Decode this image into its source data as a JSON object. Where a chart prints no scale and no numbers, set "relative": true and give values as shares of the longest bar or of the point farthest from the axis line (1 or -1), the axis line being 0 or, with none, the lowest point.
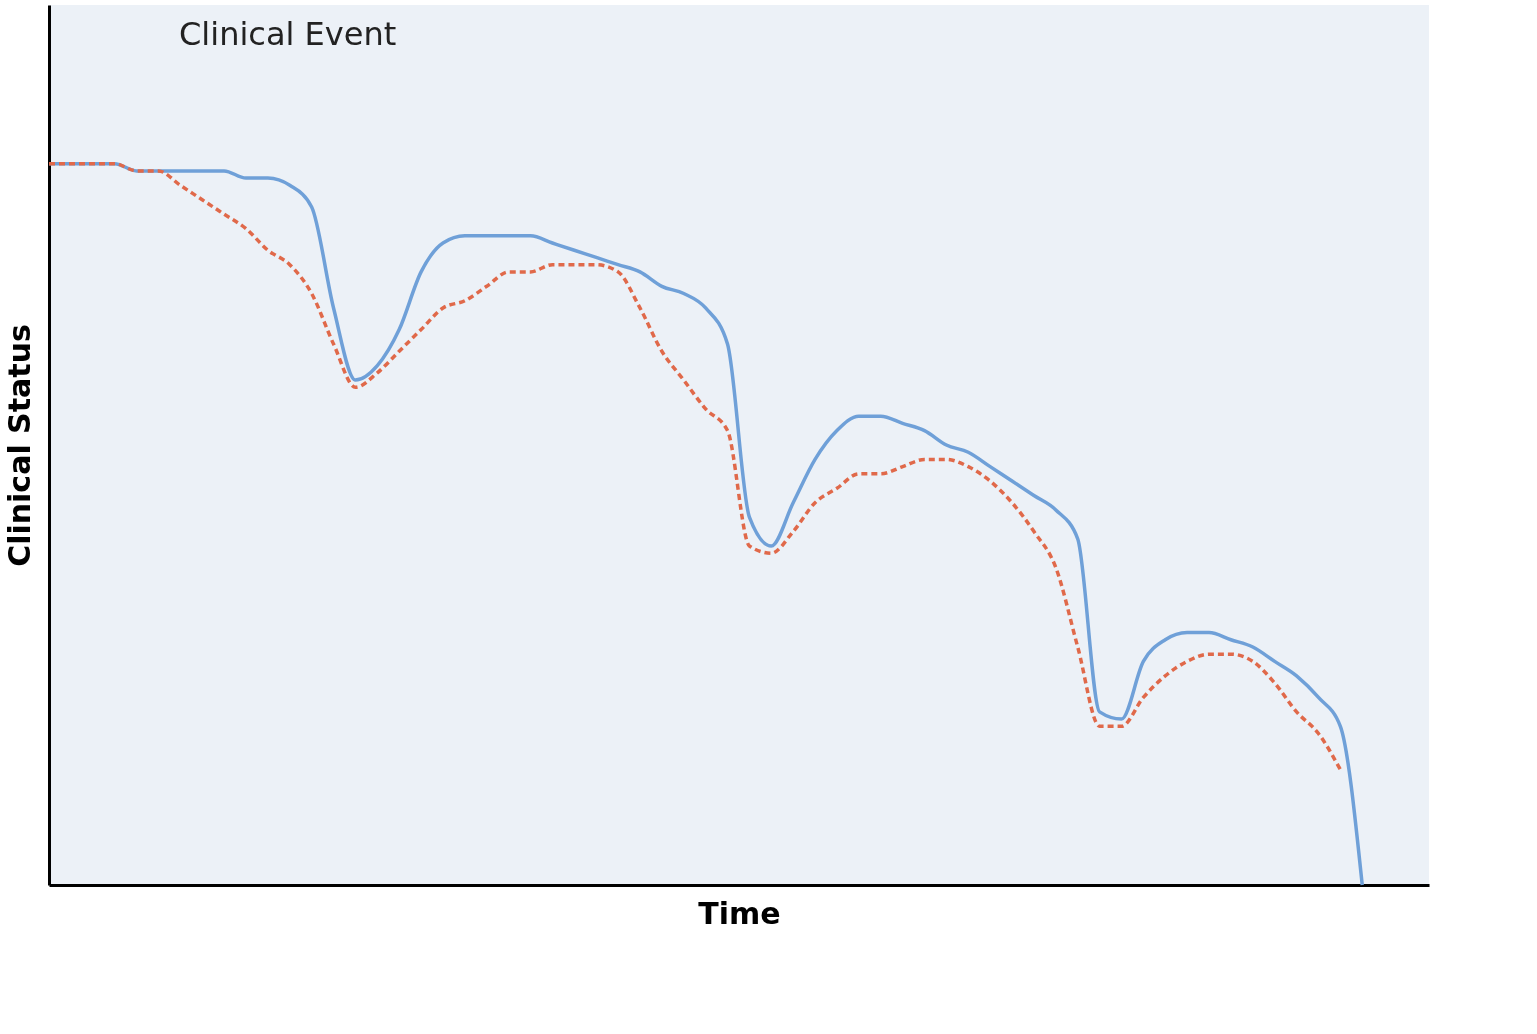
{
  "chart_data": {
    "type": "line",
    "relative": true,
    "xlabel": "Time",
    "ylabel": "Clinical Status",
    "categories": [
      null,
      null,
      null,
      null,
      null,
      null,
      null,
      null,
      null,
      null,
      null,
      null,
      null,
      null,
      null,
      null,
      null,
      null,
      null,
      null,
      null,
      null,
      null,
      null,
      null,
      null,
      null,
      null,
      null,
      null,
      null,
      null,
      null,
      null,
      null,
      null,
      null,
      null,
      null,
      null,
      null,
      null,
      null,
      null,
      null,
      null,
      null,
      null,
      null,
      null,
      null,
      null,
      null,
      null,
      null,
      null,
      null,
      null,
      null,
      null,
      null
    ],
    "series": [
      {
        "color": "#6fa0d8",
        "line_style": "solid",
        "values": [
          1.0,
          1.0,
          1.0,
          1.0,
          0.99,
          0.99,
          0.99,
          0.99,
          0.99,
          0.98,
          0.98,
          0.97,
          0.94,
          0.8,
          0.7,
          0.72,
          0.77,
          0.85,
          0.89,
          0.9,
          0.9,
          0.9,
          0.9,
          0.89,
          0.88,
          0.87,
          0.86,
          0.85,
          0.83,
          0.82,
          0.8,
          0.75,
          0.51,
          0.47,
          0.53,
          0.59,
          0.63,
          0.65,
          0.65,
          0.64,
          0.63,
          0.61,
          0.6,
          0.58,
          0.56,
          0.54,
          0.52,
          0.48,
          0.24,
          0.23,
          0.31,
          0.34,
          0.35,
          0.35,
          0.34,
          0.33,
          0.31,
          0.29,
          0.26,
          0.22,
          0
        ]
      },
      {
        "color": "#e0694a",
        "line_style": "dashed",
        "values": [
          1.0,
          1.0,
          1.0,
          1.0,
          0.99,
          0.99,
          0.97,
          0.95,
          0.93,
          0.91,
          0.88,
          0.86,
          0.82,
          0.75,
          0.69,
          0.71,
          0.74,
          0.77,
          0.8,
          0.81,
          0.83,
          0.85,
          0.85,
          0.86,
          0.86,
          0.86,
          0.85,
          0.8,
          0.74,
          0.7,
          0.66,
          0.63,
          0.47,
          0.46,
          0.49,
          0.53,
          0.55,
          0.57,
          0.57,
          0.58,
          0.59,
          0.59,
          0.58,
          0.56,
          0.53,
          0.49,
          0.44,
          0.33,
          0.22,
          0.22,
          0.26,
          0.29,
          0.31,
          0.32,
          0.32,
          0.31,
          0.28,
          0.24,
          0.21,
          0.16,
          null
        ]
      }
    ],
    "annotations": [
      "Clinical Event"
    ]
  }
}
